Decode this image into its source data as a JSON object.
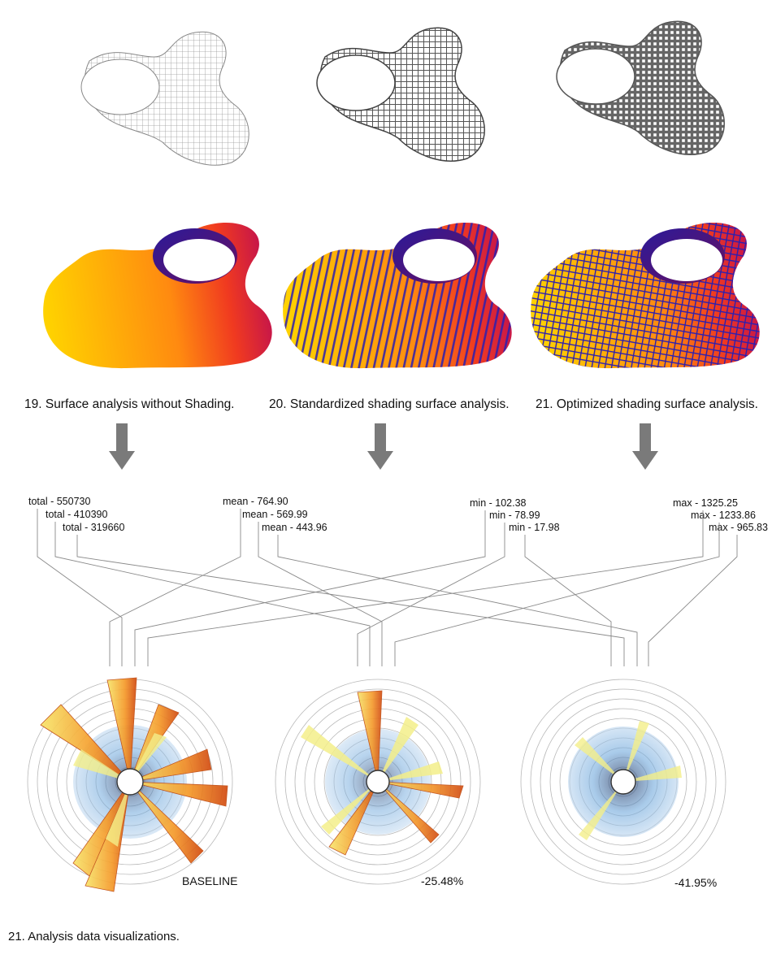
{
  "captions": [
    "19. Surface analysis without Shading.",
    "20. Standardized shading surface analysis.",
    "21. Optimized shading surface analysis."
  ],
  "stats": {
    "total": [
      "total - 550730",
      "total - 410390",
      "total - 319660"
    ],
    "mean": [
      "mean - 764.90",
      "mean - 569.99",
      "mean - 443.96"
    ],
    "min": [
      "min - 102.38",
      "min - 78.99",
      "min - 17.98"
    ],
    "max": [
      "max - 1325.25",
      "max - 1233.86",
      "max - 965.83"
    ]
  },
  "radial_labels": [
    "BASELINE",
    "-25.48%",
    "-41.95%"
  ],
  "footer_caption": "21. Analysis data visualizations.",
  "colors": {
    "arrow": "#7a7a7a",
    "heat_yellow": "#ffd400",
    "heat_orange": "#ff7a1a",
    "heat_red": "#e8202a",
    "heat_blue": "#1a1aa8",
    "radial_blue": "#6fa8dc",
    "radial_yellow": "#f2ee7a",
    "radial_orange": "#e06a10"
  }
}
